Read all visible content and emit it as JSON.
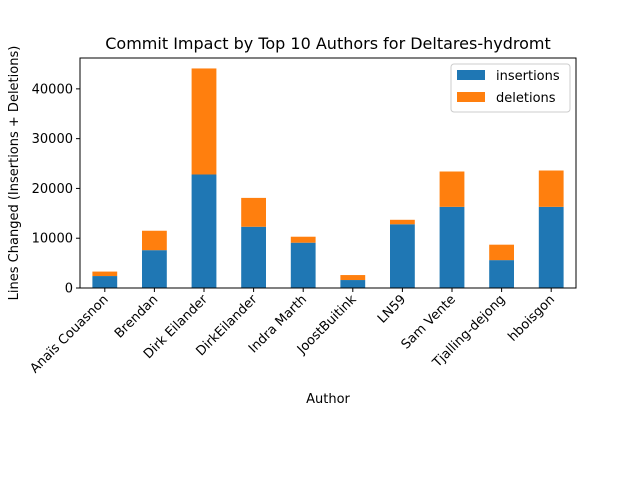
{
  "chart_data": {
    "type": "bar",
    "stacked": true,
    "title": "Commit Impact by Top 10 Authors for Deltares-hydromt",
    "xlabel": "Author",
    "ylabel": "Lines Changed (Insertions + Deletions)",
    "categories": [
      "Anaïs Couasnon",
      "Brendan",
      "Dirk Eilander",
      "DirkEilander",
      "Indra Marth",
      "JoostBuitink",
      "LN59",
      "Sam Vente",
      "Tjalling-dejong",
      "hboisgon"
    ],
    "series": [
      {
        "name": "insertions",
        "color": "#1f77b4",
        "values": [
          2400,
          7600,
          22800,
          12300,
          9100,
          1600,
          12800,
          16300,
          5600,
          16300
        ]
      },
      {
        "name": "deletions",
        "color": "#ff7f0e",
        "values": [
          900,
          3900,
          21300,
          5800,
          1200,
          1000,
          900,
          7100,
          3100,
          7300
        ]
      }
    ],
    "ylim": [
      0,
      46200
    ],
    "yticks": [
      0,
      10000,
      20000,
      30000,
      40000
    ],
    "grid": false,
    "legend": "top-right"
  }
}
